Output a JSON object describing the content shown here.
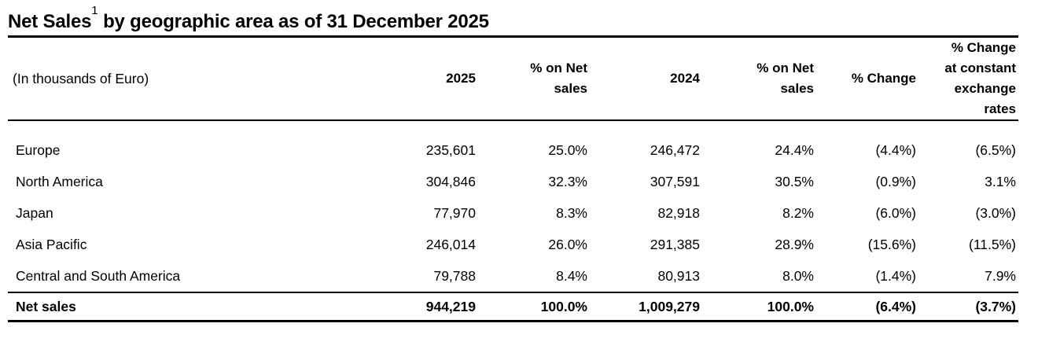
{
  "title": {
    "text_main": "Net Sales",
    "superscript": "1",
    "text_rest": " by geographic area as of 31 December 2025"
  },
  "colors": {
    "text": "#000000",
    "background": "#ffffff",
    "rules": "#000000"
  },
  "table": {
    "unit_note": "(In thousands of Euro)",
    "col_headers": [
      "2025",
      "% on Net sales",
      "2024",
      "% on Net sales",
      "% Change",
      "% Change at constant exchange rates"
    ],
    "rows": [
      {
        "label": "Europe",
        "cells": [
          "235,601",
          "25.0%",
          "246,472",
          "24.4%",
          "(4.4%)",
          "(6.5%)"
        ]
      },
      {
        "label": "North America",
        "cells": [
          "304,846",
          "32.3%",
          "307,591",
          "30.5%",
          "(0.9%)",
          "3.1%"
        ]
      },
      {
        "label": "Japan",
        "cells": [
          "77,970",
          "8.3%",
          "82,918",
          "8.2%",
          "(6.0%)",
          "(3.0%)"
        ]
      },
      {
        "label": "Asia Pacific",
        "cells": [
          "246,014",
          "26.0%",
          "291,385",
          "28.9%",
          "(15.6%)",
          "(11.5%)"
        ]
      },
      {
        "label": "Central and South America",
        "cells": [
          "79,788",
          "8.4%",
          "80,913",
          "8.0%",
          "(1.4%)",
          "7.9%"
        ]
      }
    ],
    "total_row": {
      "label": "Net sales",
      "cells": [
        "944,219",
        "100.0%",
        "1,009,279",
        "100.0%",
        "(6.4%)",
        "(3.7%)"
      ]
    }
  }
}
